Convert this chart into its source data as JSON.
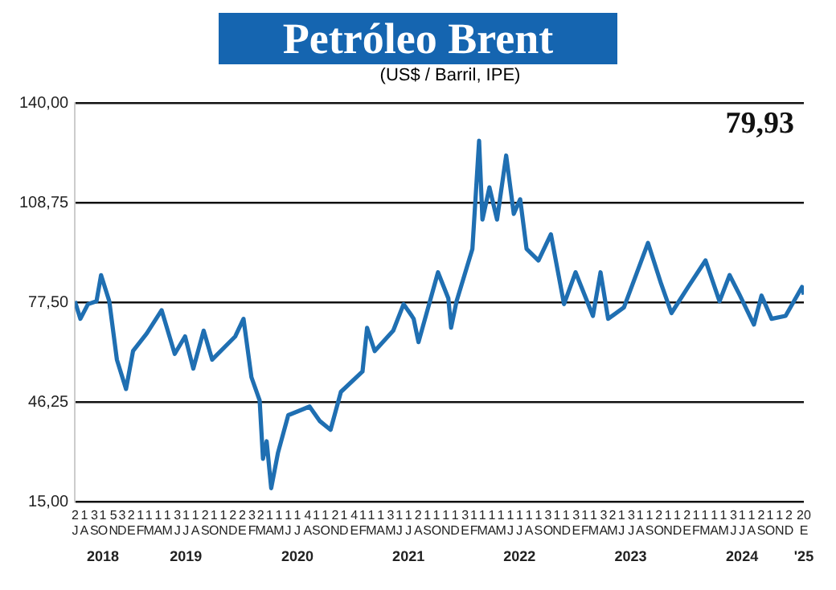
{
  "chart_data": {
    "type": "line",
    "title": "Petróleo Brent",
    "subtitle": "(US$ / Barril, IPE)",
    "x": [
      "2018-07-01",
      "2018-07-19",
      "2018-08-13",
      "2018-09-10",
      "2018-09-25",
      "2018-10-22",
      "2018-11-16",
      "2018-12-16",
      "2019-01-08",
      "2019-02-22",
      "2019-04-12",
      "2019-05-25",
      "2019-06-28",
      "2019-07-25",
      "2019-08-28",
      "2019-09-25",
      "2019-12-10",
      "2020-01-06",
      "2020-02-01",
      "2020-02-28",
      "2020-03-10",
      "2020-03-22",
      "2020-04-06",
      "2020-04-28",
      "2020-06-01",
      "2020-08-10",
      "2020-09-12",
      "2020-10-18",
      "2020-11-21",
      "2021-01-31",
      "2021-02-15",
      "2021-03-12",
      "2021-05-12",
      "2021-06-15",
      "2021-07-12",
      "2021-07-18",
      "2021-08-03",
      "2021-10-06",
      "2021-11-09",
      "2021-11-18",
      "2021-12-06",
      "2022-01-27",
      "2022-02-18",
      "2022-03-01",
      "2022-03-24",
      "2022-04-18",
      "2022-05-18",
      "2022-06-12",
      "2022-07-03",
      "2022-07-24",
      "2022-09-01",
      "2022-10-12",
      "2022-11-24",
      "2023-01-01",
      "2023-02-27",
      "2023-03-24",
      "2023-04-18",
      "2023-06-09",
      "2023-08-27",
      "2023-10-09",
      "2023-11-12",
      "2024-01-06",
      "2024-03-03",
      "2024-04-18",
      "2024-05-21",
      "2024-06-24",
      "2024-08-09",
      "2024-09-03",
      "2024-10-06",
      "2024-11-21",
      "2025-01-14",
      "2025-01-20"
    ],
    "series": [
      {
        "color": "#1f6fb2",
        "values": [
          77.8,
          72.3,
          76.9,
          77.8,
          86.0,
          77.8,
          59.5,
          50.3,
          62.2,
          67.7,
          75.0,
          61.3,
          66.8,
          56.7,
          68.6,
          59.5,
          66.8,
          72.3,
          54.0,
          46.7,
          28.4,
          33.9,
          19.2,
          30.2,
          42.1,
          44.8,
          40.3,
          37.5,
          49.4,
          55.8,
          69.5,
          62.2,
          68.6,
          76.9,
          73.2,
          72.3,
          65.0,
          86.9,
          78.7,
          69.5,
          77.8,
          94.2,
          128.1,
          103.4,
          113.5,
          103.4,
          123.5,
          105.2,
          109.8,
          94.2,
          90.6,
          98.8,
          76.9,
          86.9,
          73.2,
          86.9,
          72.3,
          75.9,
          96.1,
          83.3,
          74.1,
          82.3,
          90.6,
          77.8,
          86.0,
          79.6,
          70.5,
          79.6,
          72.3,
          73.2,
          82.3,
          79.9
        ]
      }
    ],
    "xlim": [
      "2018-07-01",
      "2025-01-20"
    ],
    "ylim": [
      15,
      140
    ],
    "yticks": [
      {
        "value": 15,
        "label": "15,00"
      },
      {
        "value": 46.25,
        "label": "46,25"
      },
      {
        "value": 77.5,
        "label": "77,50"
      },
      {
        "value": 108.75,
        "label": "108,75"
      },
      {
        "value": 140,
        "label": "140,00"
      }
    ],
    "xticks": [
      {
        "value": "2018-07-02",
        "label": "2\nJ"
      },
      {
        "value": "2018-08-01",
        "label": "1\nA"
      },
      {
        "value": "2018-09-03",
        "label": "3\nS"
      },
      {
        "value": "2018-10-01",
        "label": "1\nO"
      },
      {
        "value": "2018-11-05",
        "label": "5\nN"
      },
      {
        "value": "2018-12-03",
        "label": "3\nD"
      },
      {
        "value": "2019-01-02",
        "label": "2\nE"
      },
      {
        "value": "2019-02-01",
        "label": "1\nF"
      },
      {
        "value": "2019-03-01",
        "label": "1\nM"
      },
      {
        "value": "2019-04-01",
        "label": "1\nA"
      },
      {
        "value": "2019-05-01",
        "label": "1\nM"
      },
      {
        "value": "2019-06-03",
        "label": "3\nJ"
      },
      {
        "value": "2019-07-01",
        "label": "1\nJ"
      },
      {
        "value": "2019-08-01",
        "label": "1\nA"
      },
      {
        "value": "2019-09-02",
        "label": "2\nS"
      },
      {
        "value": "2019-10-01",
        "label": "1\nO"
      },
      {
        "value": "2019-11-01",
        "label": "1\nN"
      },
      {
        "value": "2019-12-02",
        "label": "2\nD"
      },
      {
        "value": "2020-01-02",
        "label": "2\nE"
      },
      {
        "value": "2020-02-03",
        "label": "3\nF"
      },
      {
        "value": "2020-03-02",
        "label": "2\nM"
      },
      {
        "value": "2020-04-01",
        "label": "1\nA"
      },
      {
        "value": "2020-05-01",
        "label": "1\nM"
      },
      {
        "value": "2020-06-01",
        "label": "1\nJ"
      },
      {
        "value": "2020-07-01",
        "label": "1\nJ"
      },
      {
        "value": "2020-08-04",
        "label": "4\nA"
      },
      {
        "value": "2020-09-01",
        "label": "1\nS"
      },
      {
        "value": "2020-10-01",
        "label": "1\nO"
      },
      {
        "value": "2020-11-02",
        "label": "2\nN"
      },
      {
        "value": "2020-12-01",
        "label": "1\nD"
      },
      {
        "value": "2021-01-04",
        "label": "4\nE"
      },
      {
        "value": "2021-02-01",
        "label": "1\nF"
      },
      {
        "value": "2021-03-01",
        "label": "1\nM"
      },
      {
        "value": "2021-04-01",
        "label": "1\nA"
      },
      {
        "value": "2021-05-03",
        "label": "3\nM"
      },
      {
        "value": "2021-06-01",
        "label": "1\nJ"
      },
      {
        "value": "2021-07-01",
        "label": "1\nJ"
      },
      {
        "value": "2021-08-02",
        "label": "2\nA"
      },
      {
        "value": "2021-09-01",
        "label": "1\nS"
      },
      {
        "value": "2021-10-01",
        "label": "1\nO"
      },
      {
        "value": "2021-11-01",
        "label": "1\nN"
      },
      {
        "value": "2021-12-01",
        "label": "1\nD"
      },
      {
        "value": "2022-01-03",
        "label": "3\nE"
      },
      {
        "value": "2022-02-01",
        "label": "1\nF"
      },
      {
        "value": "2022-03-01",
        "label": "1\nM"
      },
      {
        "value": "2022-04-01",
        "label": "1\nA"
      },
      {
        "value": "2022-05-01",
        "label": "1\nM"
      },
      {
        "value": "2022-06-01",
        "label": "1\nJ"
      },
      {
        "value": "2022-07-01",
        "label": "1\nJ"
      },
      {
        "value": "2022-08-01",
        "label": "1\nA"
      },
      {
        "value": "2022-09-01",
        "label": "1\nS"
      },
      {
        "value": "2022-10-03",
        "label": "3\nO"
      },
      {
        "value": "2022-11-01",
        "label": "1\nN"
      },
      {
        "value": "2022-12-01",
        "label": "1\nD"
      },
      {
        "value": "2023-01-03",
        "label": "3\nE"
      },
      {
        "value": "2023-02-01",
        "label": "1\nF"
      },
      {
        "value": "2023-03-01",
        "label": "1\nM"
      },
      {
        "value": "2023-04-03",
        "label": "3\nA"
      },
      {
        "value": "2023-05-02",
        "label": "2\nM"
      },
      {
        "value": "2023-06-01",
        "label": "1\nJ"
      },
      {
        "value": "2023-07-03",
        "label": "3\nJ"
      },
      {
        "value": "2023-08-01",
        "label": "1\nA"
      },
      {
        "value": "2023-09-01",
        "label": "1\nS"
      },
      {
        "value": "2023-10-02",
        "label": "2\nO"
      },
      {
        "value": "2023-11-01",
        "label": "1\nN"
      },
      {
        "value": "2023-12-01",
        "label": "1\nD"
      },
      {
        "value": "2024-01-02",
        "label": "2\nE"
      },
      {
        "value": "2024-02-01",
        "label": "1\nF"
      },
      {
        "value": "2024-03-01",
        "label": "1\nM"
      },
      {
        "value": "2024-04-01",
        "label": "1\nA"
      },
      {
        "value": "2024-05-01",
        "label": "1\nM"
      },
      {
        "value": "2024-06-03",
        "label": "3\nJ"
      },
      {
        "value": "2024-07-01",
        "label": "1\nJ"
      },
      {
        "value": "2024-08-01",
        "label": "1\nA"
      },
      {
        "value": "2024-09-02",
        "label": "2\nS"
      },
      {
        "value": "2024-10-01",
        "label": "1\nO"
      },
      {
        "value": "2024-11-01",
        "label": "1\nN"
      },
      {
        "value": "2024-12-02",
        "label": "2\nD"
      },
      {
        "value": "2025-01-20",
        "label": "20\nE"
      }
    ],
    "x2lim": [
      "2018-07-01",
      "2025-01-20"
    ],
    "x2ticks": [
      {
        "value": "2018-10-01",
        "label": "2018"
      },
      {
        "value": "2019-07-01",
        "label": "2019"
      },
      {
        "value": "2020-07-01",
        "label": "2020"
      },
      {
        "value": "2021-07-01",
        "label": "2021"
      },
      {
        "value": "2022-07-01",
        "label": "2022"
      },
      {
        "value": "2023-07-01",
        "label": "2023"
      },
      {
        "value": "2024-07-01",
        "label": "2024"
      },
      {
        "value": "2025-01-20",
        "label": "'25"
      }
    ],
    "annotations": [
      "79,93"
    ],
    "grid": "y",
    "legend": false
  }
}
